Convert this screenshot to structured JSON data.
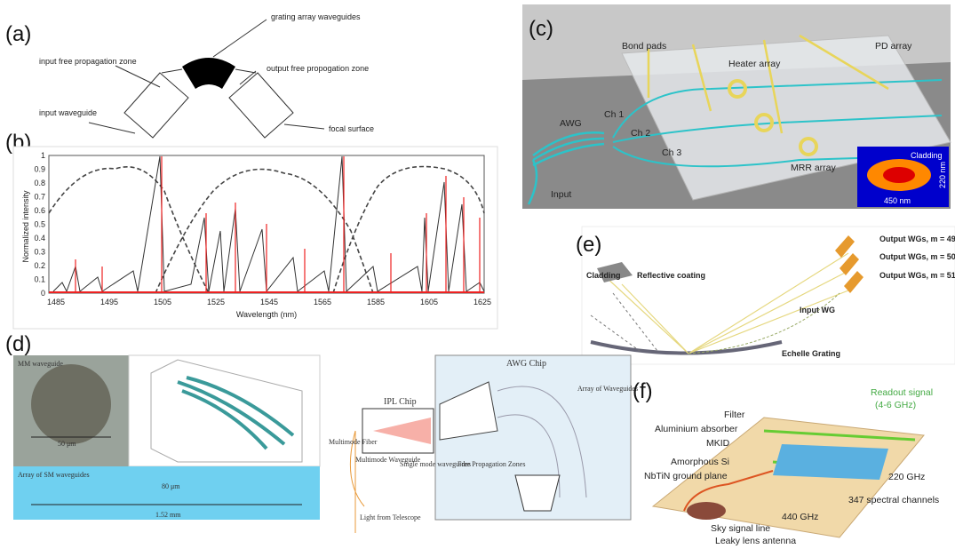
{
  "panels": {
    "a": {
      "label": "(a)",
      "grating": "grating array waveguides",
      "input_fpz": "input free propagation zone",
      "output_fpz": "output free propogation zone",
      "input_wg": "input waveguide",
      "focal": "focal surface"
    },
    "b": {
      "label": "(b)",
      "ylabel": "Normalized intensity",
      "xlabel": "Wavelength (nm)",
      "yticks": [
        "0",
        "0.1",
        "0.2",
        "0.3",
        "0.4",
        "0.5",
        "0.6",
        "0.7",
        "0.8",
        "0.9",
        "1"
      ],
      "xticks": [
        "1485",
        "1495",
        "1505",
        "1525",
        "1545",
        "1565",
        "1585",
        "1605",
        "1625"
      ]
    },
    "c": {
      "label": "(c)",
      "bond": "Bond pads",
      "pd": "PD array",
      "heater": "Heater array",
      "awg": "AWG",
      "ch1": "Ch 1",
      "ch2": "Ch 2",
      "ch3": "Ch 3",
      "cladding": "Cladding",
      "mrr": "MRR array",
      "input": "Input",
      "width": "450 nm",
      "height": "220 nm"
    },
    "d": {
      "label": "(d)",
      "mm": "MM waveguide",
      "scale1": "50 μm",
      "array": "Array of SM waveguides",
      "scale2": "80 μm",
      "length": "1.52 mm",
      "ipl": "IPL Chip",
      "awg": "AWG Chip",
      "fiber": "Multimode Fiber",
      "mmwg": "Multimode Waveguide",
      "smwg": "Single mode waveguides",
      "light": "Light from Telescope",
      "arraywg": "Array of Waveguides",
      "fpz": "Free Propagation Zones"
    },
    "e": {
      "label": "(e)",
      "out49": "Output WGs, m = 49",
      "out50": "Output WGs, m = 50",
      "out51": "Output WGs, m = 51",
      "cladding": "Cladding",
      "coating": "Reflective coating",
      "inputwg": "Input WG",
      "grating": "Echelle Grating"
    },
    "f": {
      "label": "(f)",
      "readout": "Readout signal",
      "band": "(4-6 GHz)",
      "filter": "Filter",
      "absorber": "Aluminium absorber",
      "mkid": "MKID",
      "si": "Amorphous Si",
      "ground": "NbTiN ground plane",
      "f220": "220 GHz",
      "channels": "347 spectral channels",
      "f440": "440 GHz",
      "sky": "Sky signal line",
      "antenna": "Leaky lens antenna"
    }
  }
}
